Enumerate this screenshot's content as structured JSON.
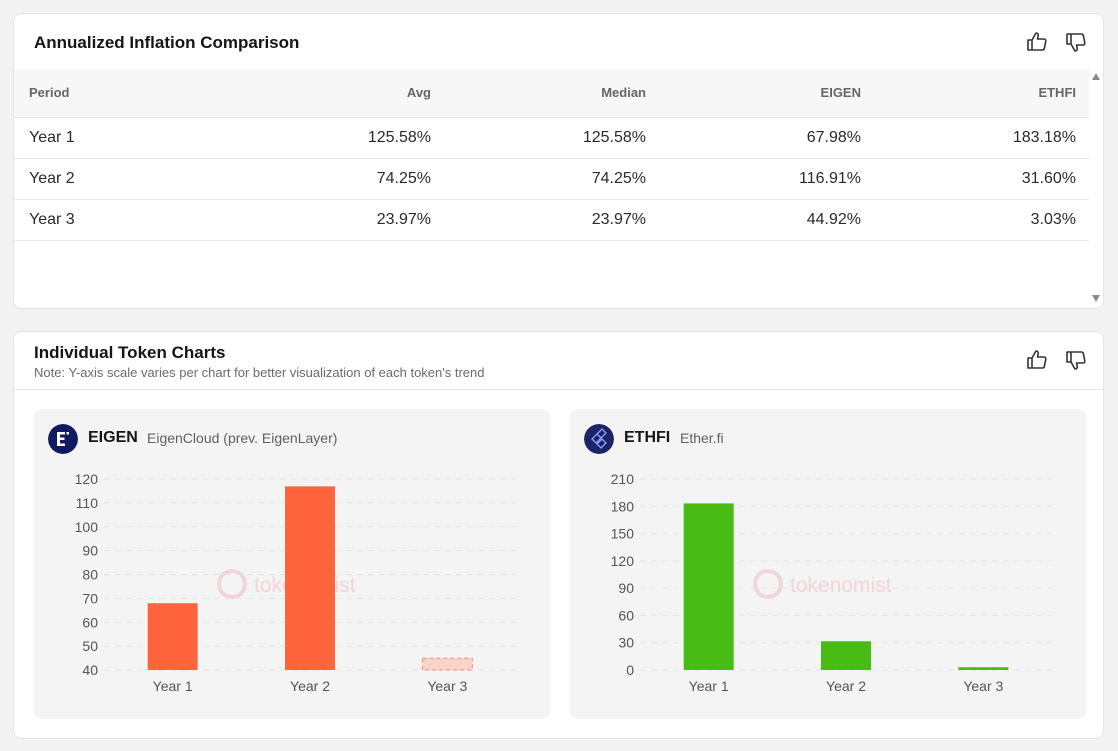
{
  "comparison": {
    "title": "Annualized Inflation Comparison",
    "columns": [
      "Period",
      "Avg",
      "Median",
      "EIGEN",
      "ETHFI"
    ],
    "rows": [
      [
        "Year 1",
        "125.58%",
        "125.58%",
        "67.98%",
        "183.18%"
      ],
      [
        "Year 2",
        "74.25%",
        "74.25%",
        "116.91%",
        "31.60%"
      ],
      [
        "Year 3",
        "23.97%",
        "23.97%",
        "44.92%",
        "3.03%"
      ]
    ]
  },
  "individual": {
    "title": "Individual Token Charts",
    "note": "Note: Y-axis scale varies per chart for better visualization of each token's trend"
  },
  "watermark": "tokenomist",
  "colors": {
    "eigen": "#ff643c",
    "ethfi": "#48bc14",
    "grid": "#e3e3e3",
    "eigen_logo": "#0f1a63",
    "ethfi_logo": "#1d2466"
  },
  "icons": [
    "thumbs-up-icon",
    "thumbs-down-icon",
    "eigen-logo-icon",
    "ethfi-logo-icon"
  ],
  "chart_data": [
    {
      "type": "bar",
      "token": "EIGEN",
      "project": "EigenCloud (prev. EigenLayer)",
      "categories": [
        "Year 1",
        "Year 2",
        "Year 3"
      ],
      "values": [
        67.98,
        116.91,
        44.92
      ],
      "ylim": [
        40,
        120
      ],
      "yticks": [
        40,
        50,
        60,
        70,
        80,
        90,
        100,
        110,
        120
      ],
      "grid": true,
      "highlight": [
        false,
        false,
        true
      ]
    },
    {
      "type": "bar",
      "token": "ETHFI",
      "project": "Ether.fi",
      "categories": [
        "Year 1",
        "Year 2",
        "Year 3"
      ],
      "values": [
        183.18,
        31.6,
        3.03
      ],
      "ylim": [
        0,
        210
      ],
      "yticks": [
        0,
        30,
        60,
        90,
        120,
        150,
        180,
        210
      ],
      "grid": true,
      "highlight": [
        false,
        false,
        false
      ]
    }
  ]
}
